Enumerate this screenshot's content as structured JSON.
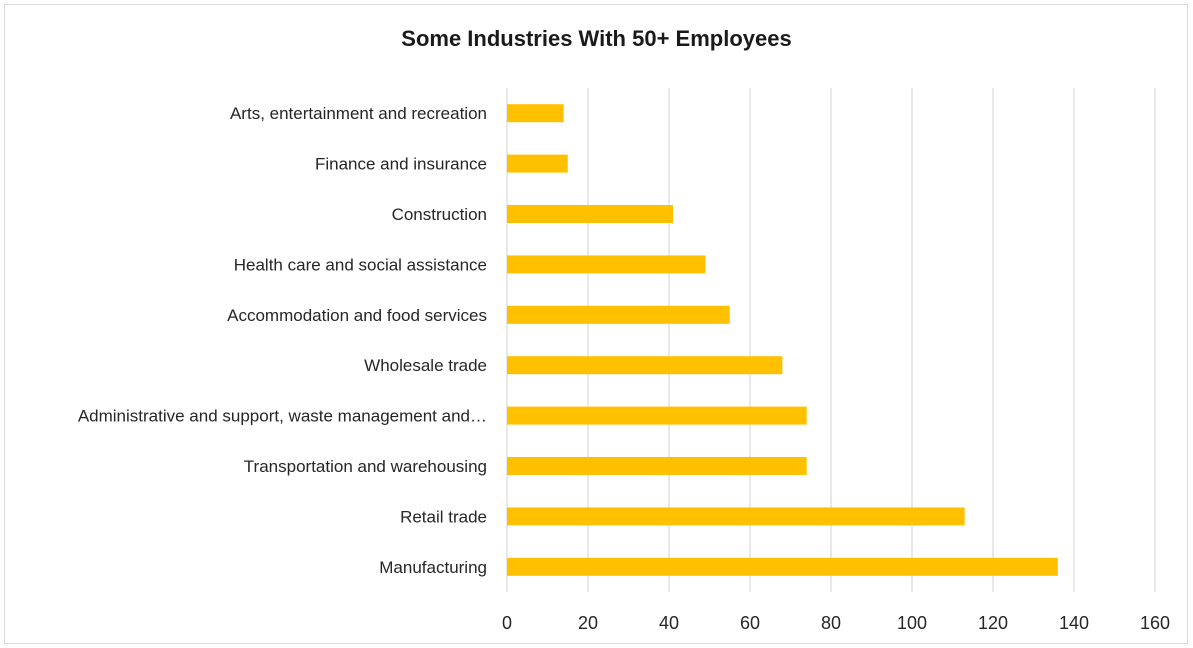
{
  "chart_data": {
    "type": "bar",
    "orientation": "horizontal",
    "title": "Some Industries With 50+ Employees",
    "xlabel": "",
    "ylabel": "",
    "categories": [
      "Arts, entertainment and recreation",
      "Finance and insurance",
      "Construction",
      "Health care and social assistance",
      "Accommodation and food services",
      "Wholesale trade",
      "Administrative and support, waste management and…",
      "Transportation and warehousing",
      "Retail trade",
      "Manufacturing"
    ],
    "values": [
      14,
      15,
      41,
      49,
      55,
      68,
      74,
      74,
      113,
      136
    ],
    "xlim": [
      0,
      160
    ],
    "xticks": [
      0,
      20,
      40,
      60,
      80,
      100,
      120,
      140,
      160
    ],
    "xtick_labels": [
      "0",
      "20",
      "40",
      "60",
      "80",
      "100",
      "120",
      "140",
      "160"
    ],
    "grid": "vertical",
    "legend": "none",
    "bar_color": "#FFC000",
    "grid_color": "#d9d9d9"
  }
}
